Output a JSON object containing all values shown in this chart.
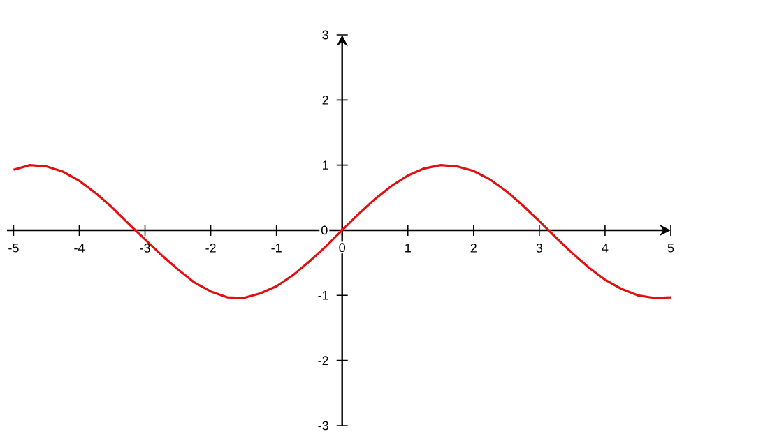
{
  "chart_data": {
    "type": "line",
    "x": [
      -5,
      -4.75,
      -4.5,
      -4.25,
      -4,
      -3.75,
      -3.5,
      -3.25,
      -3,
      -2.75,
      -2.5,
      -2.25,
      -2,
      -1.75,
      -1.5,
      -1.25,
      -1,
      -0.75,
      -0.5,
      -0.25,
      0,
      0.25,
      0.5,
      0.75,
      1,
      1.25,
      1.5,
      1.75,
      2,
      2.25,
      2.5,
      2.75,
      3,
      3.25,
      3.5,
      3.75,
      4,
      4.25,
      4.5,
      4.75,
      5
    ],
    "series": [
      {
        "color": "#e01010",
        "values": [
          0.93,
          1.0,
          0.98,
          0.9,
          0.76,
          0.57,
          0.35,
          0.1,
          -0.14,
          -0.38,
          -0.6,
          -0.8,
          -0.94,
          -1.03,
          -1.04,
          -0.97,
          -0.86,
          -0.69,
          -0.48,
          -0.25,
          0,
          0.25,
          0.48,
          0.68,
          0.84,
          0.95,
          1.0,
          0.98,
          0.91,
          0.78,
          0.6,
          0.38,
          0.14,
          -0.11,
          -0.35,
          -0.57,
          -0.76,
          -0.9,
          -1.0,
          -1.04,
          -1.03
        ]
      }
    ],
    "xlim": [
      -5.1,
      5
    ],
    "ylim": [
      -3,
      3
    ],
    "xticks": [
      -5,
      -4,
      -3,
      -2,
      -1,
      0,
      1,
      2,
      3,
      4,
      5
    ],
    "yticks": [
      -3,
      -2,
      -1,
      0,
      1,
      2,
      3
    ]
  }
}
